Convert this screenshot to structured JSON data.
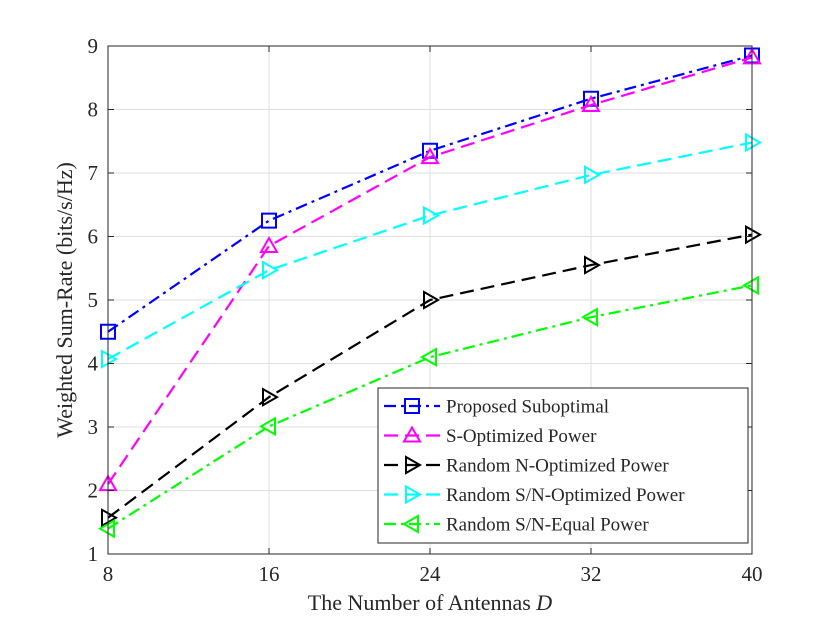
{
  "chart_data": {
    "type": "line",
    "title": "",
    "xlabel": "The Number of Antennas",
    "xlabel_symbol": "D",
    "ylabel": "Weighted Sum-Rate (bits/s/Hz)",
    "xlim": [
      8,
      40
    ],
    "ylim": [
      1,
      9
    ],
    "xticks": [
      8,
      16,
      24,
      32,
      40
    ],
    "yticks": [
      1,
      2,
      3,
      4,
      5,
      6,
      7,
      8,
      9
    ],
    "grid": true,
    "legend_position": "bottom-right",
    "x": [
      8,
      16,
      24,
      32,
      40
    ],
    "series": [
      {
        "name": "Proposed Suboptimal",
        "values": [
          4.5,
          6.25,
          7.35,
          8.17,
          8.85
        ],
        "color": "#0000ff",
        "dash": "dashdot",
        "marker": "square"
      },
      {
        "name": "S-Optimized Power",
        "values": [
          2.1,
          5.85,
          7.25,
          8.07,
          8.82
        ],
        "color": "#ff00ff",
        "dash": "dashed",
        "marker": "triangle-up"
      },
      {
        "name": "Random N-Optimized Power",
        "values": [
          1.57,
          3.47,
          5.0,
          5.55,
          6.03
        ],
        "color": "#000000",
        "dash": "dashed",
        "marker": "triangle-right"
      },
      {
        "name": "Random S/N-Optimized Power",
        "values": [
          4.07,
          5.47,
          6.33,
          6.97,
          7.48
        ],
        "color": "#00ffff",
        "dash": "dashed",
        "marker": "triangle-right"
      },
      {
        "name": "Random S/N-Equal Power",
        "values": [
          1.4,
          3.01,
          4.1,
          4.73,
          5.23
        ],
        "color": "#00ff00",
        "dash": "dashdot",
        "marker": "triangle-left"
      }
    ]
  }
}
